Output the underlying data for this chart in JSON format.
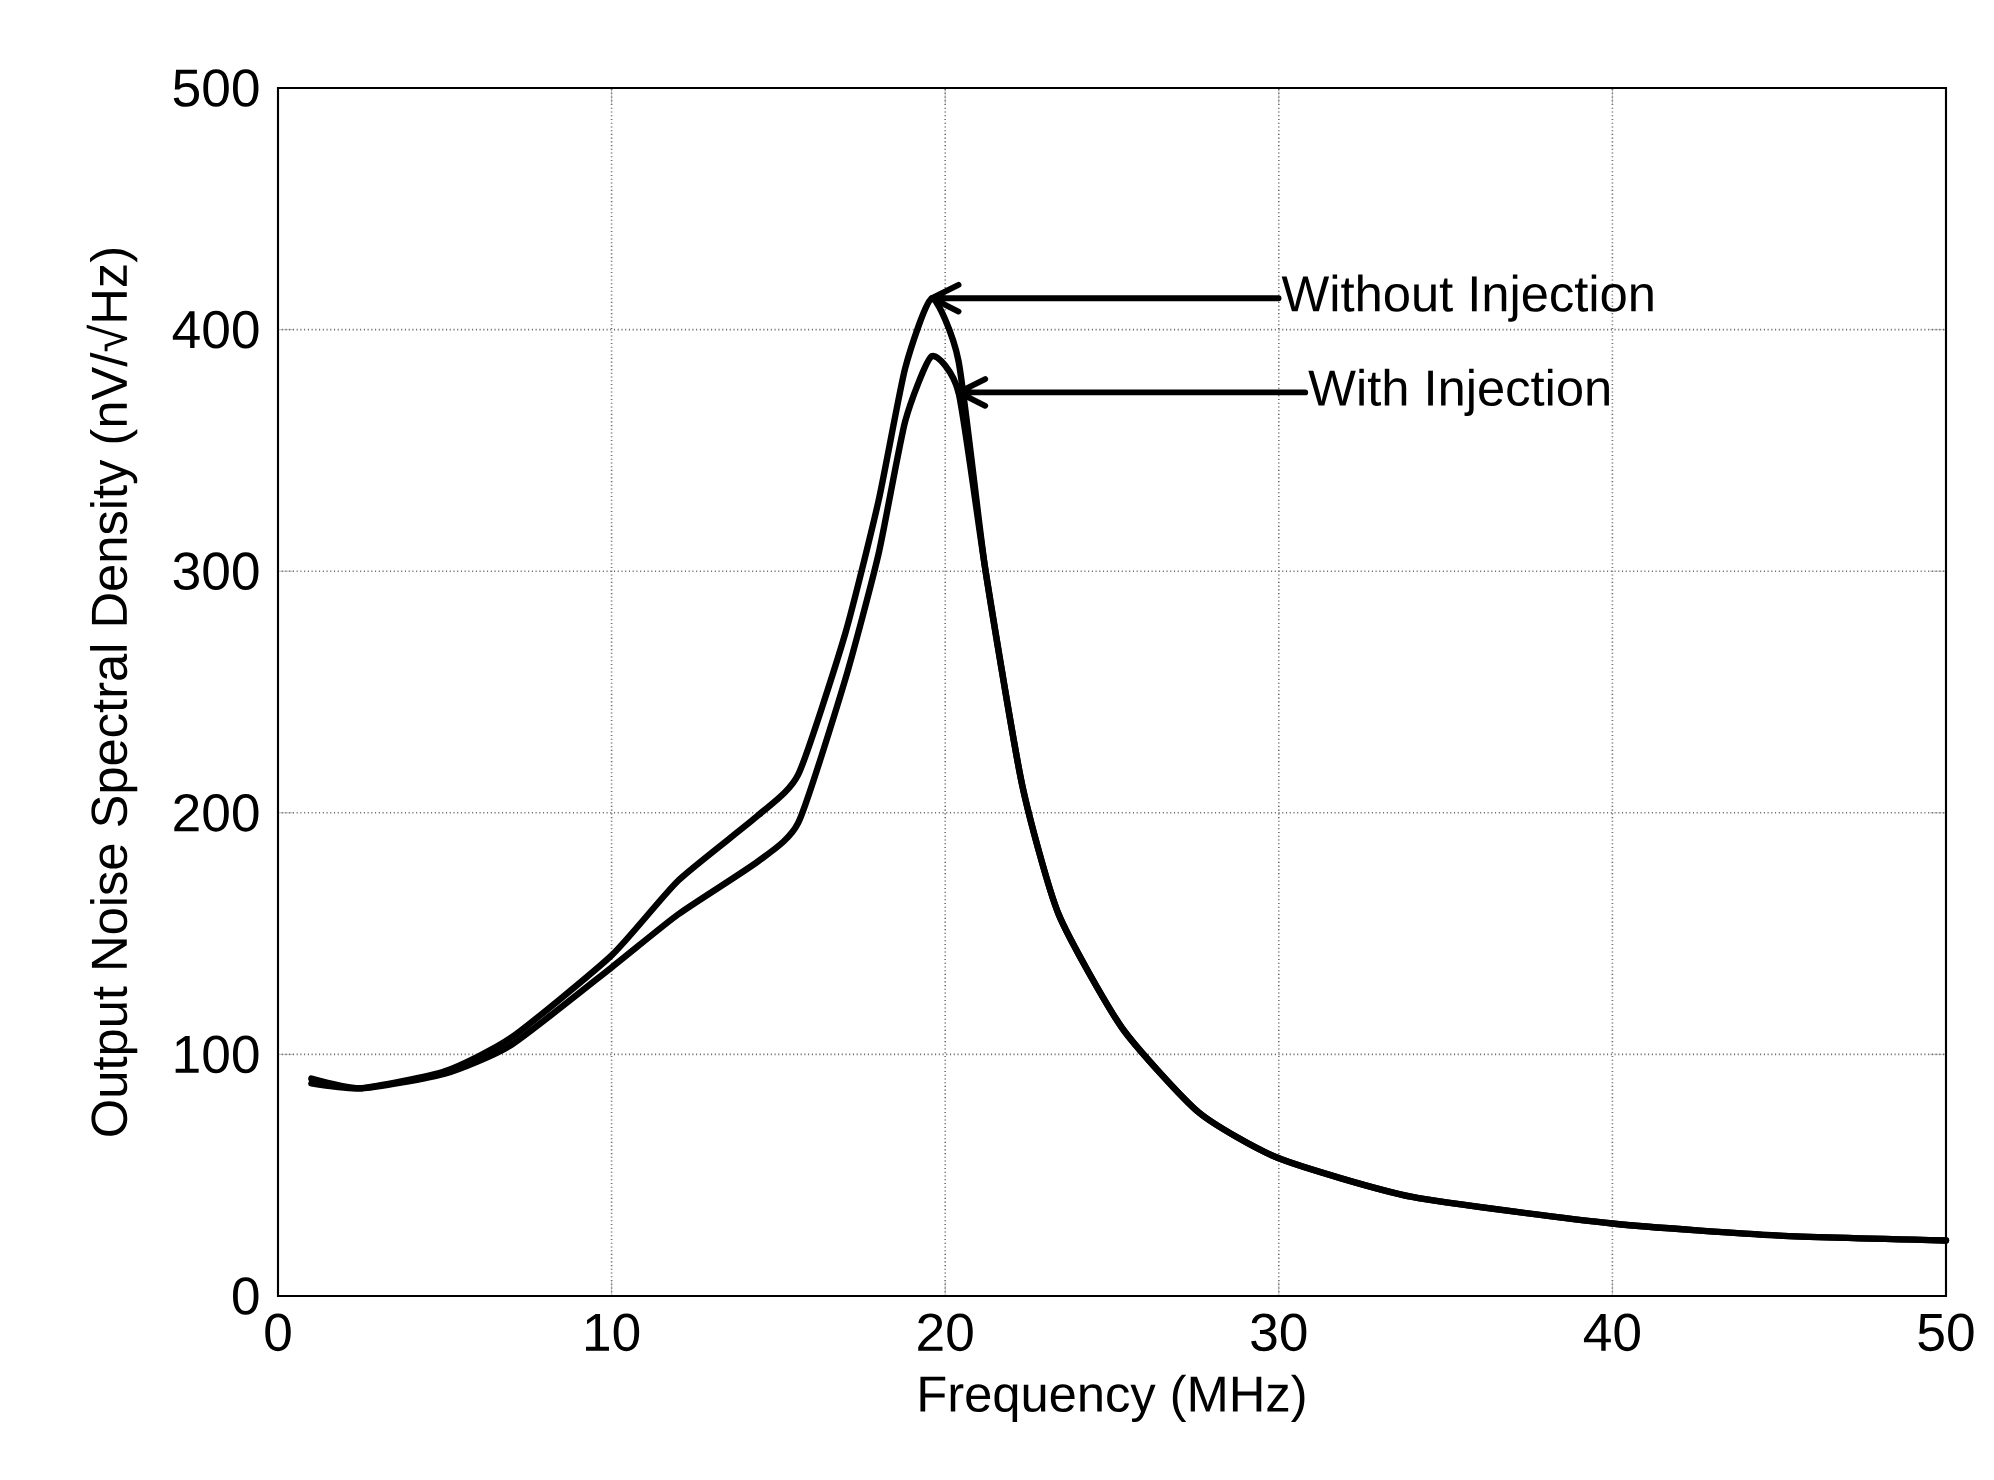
{
  "chart_data": {
    "type": "line",
    "xlabel": "Frequency (MHz)",
    "ylabel": "Output Noise Spectral Density (nV/√Hz)",
    "xlim": [
      0,
      50
    ],
    "ylim": [
      0,
      500
    ],
    "xticks": [
      0,
      10,
      20,
      30,
      40,
      50
    ],
    "yticks": [
      0,
      100,
      200,
      300,
      400,
      500
    ],
    "grid": true,
    "line_style": "solid",
    "marker": "none",
    "x": [
      1,
      2.5,
      5,
      7,
      10,
      12,
      14.4,
      15.6,
      17,
      18,
      18.8,
      19.6,
      20.4,
      21.2,
      22.3,
      23.4,
      25.3,
      27.6,
      30,
      34,
      40,
      45,
      50
    ],
    "series": [
      {
        "color": "#000000",
        "values": [
          88,
          86,
          93,
          107,
          141,
          172,
          199,
          216,
          274,
          329,
          384,
          413,
          387,
          301,
          212,
          158,
          111,
          76,
          57,
          41,
          30,
          25,
          23
        ]
      },
      {
        "color": "#000000",
        "values": [
          90,
          86,
          92,
          104,
          136,
          158,
          180,
          196,
          255,
          307,
          362,
          389,
          374,
          301,
          212,
          158,
          111,
          76,
          57,
          41,
          30,
          25,
          23
        ]
      }
    ],
    "annotations": [
      {
        "text": "Without Injection",
        "x": 19.6,
        "y": 413
      },
      {
        "text": "With Injection",
        "x": 20.4,
        "y": 374
      }
    ]
  }
}
